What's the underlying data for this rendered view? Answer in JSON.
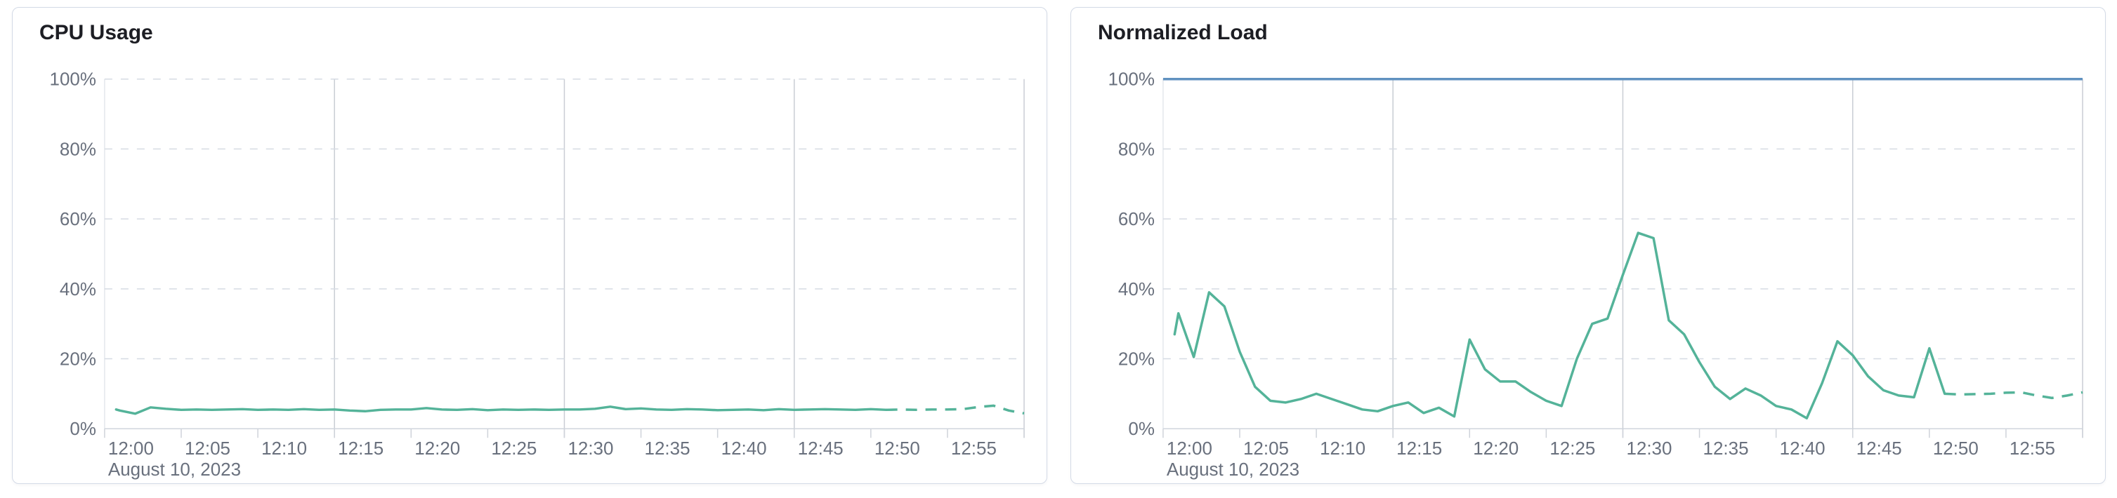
{
  "chart_data": [
    {
      "type": "line",
      "title": "CPU Usage",
      "x_tick_labels": [
        "12:00",
        "12:05",
        "12:10",
        "12:15",
        "12:20",
        "12:25",
        "12:30",
        "12:35",
        "12:40",
        "12:45",
        "12:50",
        "12:55"
      ],
      "x_axis_date_label": "August 10, 2023",
      "y_tick_labels": [
        "0%",
        "20%",
        "40%",
        "60%",
        "80%",
        "100%"
      ],
      "ylim": [
        0,
        100
      ],
      "xlim_minutes": [
        0,
        60
      ],
      "grid": "dashed horizontal every 20%, darker vertical every 15 min",
      "major_vertical_gridlines_minutes": [
        15,
        30,
        45,
        60
      ],
      "legend": "none",
      "limit_line": {
        "value": 100,
        "style": "dashed",
        "color": "#D3DAE6"
      },
      "series": [
        {
          "name": "CPU Usage",
          "color": "#54B399",
          "x_start_minute": 0.75,
          "minutes_per_point": 1,
          "dashed_from_index": 51,
          "values_percent_per_minute": [
            5.5,
            5.2,
            4.3,
            6.1,
            5.7,
            5.4,
            5.5,
            5.4,
            5.5,
            5.6,
            5.4,
            5.5,
            5.4,
            5.6,
            5.4,
            5.5,
            5.2,
            5.0,
            5.4,
            5.5,
            5.5,
            5.9,
            5.5,
            5.4,
            5.6,
            5.3,
            5.5,
            5.4,
            5.5,
            5.4,
            5.5,
            5.5,
            5.7,
            6.3,
            5.6,
            5.8,
            5.5,
            5.4,
            5.6,
            5.5,
            5.3,
            5.4,
            5.5,
            5.3,
            5.6,
            5.4,
            5.5,
            5.6,
            5.5,
            5.4,
            5.6,
            5.4,
            5.5,
            5.4,
            5.5,
            5.5,
            5.6,
            6.2,
            6.6,
            5.2,
            4.4
          ]
        }
      ]
    },
    {
      "type": "line",
      "title": "Normalized Load",
      "x_tick_labels": [
        "12:00",
        "12:05",
        "12:10",
        "12:15",
        "12:20",
        "12:25",
        "12:30",
        "12:35",
        "12:40",
        "12:45",
        "12:50",
        "12:55"
      ],
      "x_axis_date_label": "August 10, 2023",
      "y_tick_labels": [
        "0%",
        "20%",
        "40%",
        "60%",
        "80%",
        "100%"
      ],
      "ylim": [
        0,
        100
      ],
      "xlim_minutes": [
        0,
        60
      ],
      "grid": "dashed horizontal every 20%, darker vertical every 15 min",
      "major_vertical_gridlines_minutes": [
        15,
        30,
        45,
        60
      ],
      "legend": "none",
      "limit_line": {
        "value": 100,
        "style": "solid",
        "color": "#6092C0"
      },
      "series": [
        {
          "name": "Normalized Load",
          "color": "#54B399",
          "x_start_minute": 0.75,
          "minutes_per_point": 1,
          "dashed_from_index": 51,
          "values_percent_per_minute": [
            27,
            33,
            20.5,
            39,
            35,
            22,
            12,
            8,
            7.5,
            8.5,
            10,
            8.5,
            7,
            5.5,
            5,
            6.5,
            7.5,
            4.5,
            6,
            3.5,
            25.5,
            17,
            13.5,
            13.5,
            10.5,
            8,
            6.5,
            20,
            30,
            31.5,
            44,
            56,
            54.5,
            31,
            27,
            19,
            12,
            8.5,
            11.5,
            9.5,
            6.5,
            5.5,
            3,
            13,
            25,
            21,
            15,
            11,
            9.5,
            9,
            23,
            10,
            9.8,
            9.9,
            10,
            10.3,
            10.4,
            9.5,
            8.8,
            9.5,
            10.4
          ]
        }
      ]
    }
  ],
  "colors": {
    "series_green": "#54B399",
    "limit_blue": "#6092C0",
    "grid_dashed": "#D6DBE3",
    "grid_major_vertical": "#C9CDD4",
    "axis_line": "#D0D5DD",
    "axis_text": "#69707D",
    "title_text": "#1D1E24",
    "panel_border": "#D3DAE6",
    "panel_background": "#FFFFFF"
  }
}
